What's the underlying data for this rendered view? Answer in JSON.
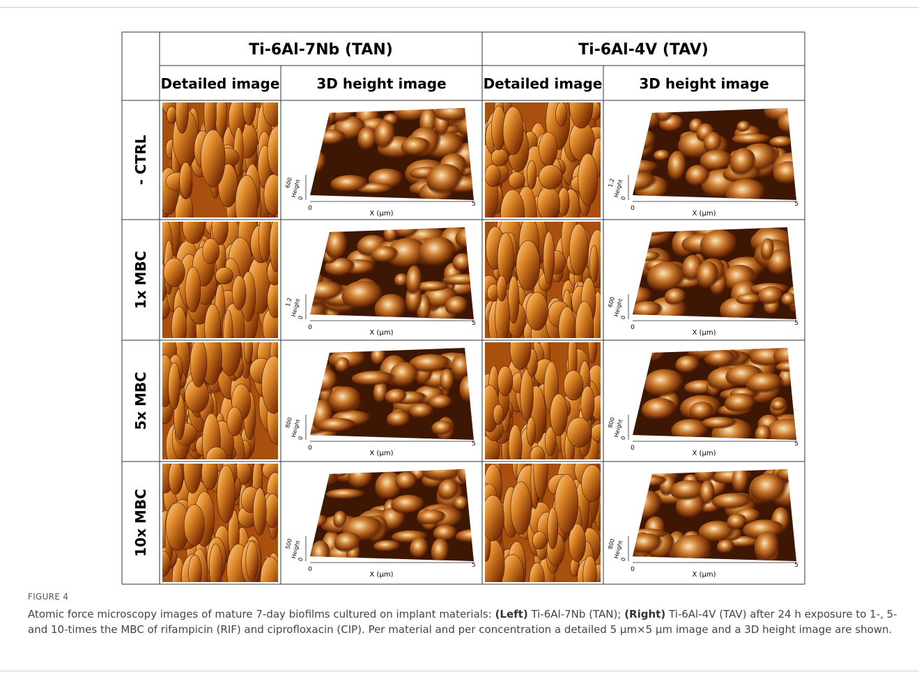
{
  "table": {
    "groups": [
      "Ti-6Al-7Nb (TAN)",
      "Ti-6Al-4V (TAV)"
    ],
    "subheaders": [
      "Detailed image",
      "3D height image",
      "Detailed image",
      "3D height image"
    ],
    "rows": [
      {
        "label": "- CTRL",
        "plots": [
          {
            "height_label": "Height",
            "height_ticks": [
              "600",
              "0"
            ],
            "x_label": "X (µm)",
            "x_ticks": [
              "0",
              "5"
            ]
          },
          {
            "height_label": "Height",
            "height_ticks": [
              "1.2",
              "0"
            ],
            "x_label": "X (µm)",
            "x_ticks": [
              "0",
              "5"
            ]
          }
        ]
      },
      {
        "label": "1x MBC",
        "plots": [
          {
            "height_label": "Height",
            "height_ticks": [
              "1.2",
              "0"
            ],
            "x_label": "X (µm)",
            "x_ticks": [
              "0",
              "5"
            ]
          },
          {
            "height_label": "Height",
            "height_ticks": [
              "600",
              "0"
            ],
            "x_label": "X (µm)",
            "x_ticks": [
              "0",
              "5"
            ]
          }
        ]
      },
      {
        "label": "5x MBC",
        "plots": [
          {
            "height_label": "Height",
            "height_ticks": [
              "800",
              "0"
            ],
            "x_label": "X (µm)",
            "x_ticks": [
              "0",
              "5"
            ]
          },
          {
            "height_label": "Height",
            "height_ticks": [
              "800",
              "0"
            ],
            "x_label": "X (µm)",
            "x_ticks": [
              "0",
              "5"
            ]
          }
        ]
      },
      {
        "label": "10x MBC",
        "plots": [
          {
            "height_label": "Height",
            "height_ticks": [
              "500",
              "0"
            ],
            "x_label": "X (µm)",
            "x_ticks": [
              "0",
              "5"
            ]
          },
          {
            "height_label": "Height",
            "height_ticks": [
              "800",
              "0"
            ],
            "x_label": "X (µm)",
            "x_ticks": [
              "0",
              "5"
            ]
          }
        ]
      }
    ]
  },
  "figure": {
    "label": "FIGURE 4",
    "caption": [
      {
        "text": "Atomic force microscopy images of mature 7-day biofilms cultured on implant materials: "
      },
      {
        "text": "(Left)",
        "bold": true
      },
      {
        "text": " Ti-6Al-7Nb (TAN); "
      },
      {
        "text": "(Right)",
        "bold": true
      },
      {
        "text": " Ti-6Al-4V (TAV) after 24 h exposure to 1-, 5- and 10-times the MBC of rifampicin (RIF) and ciprofloxacin (CIP). Per material and per concentration a detailed 5 μm×5 μm image and a 3D height image are shown."
      }
    ]
  }
}
